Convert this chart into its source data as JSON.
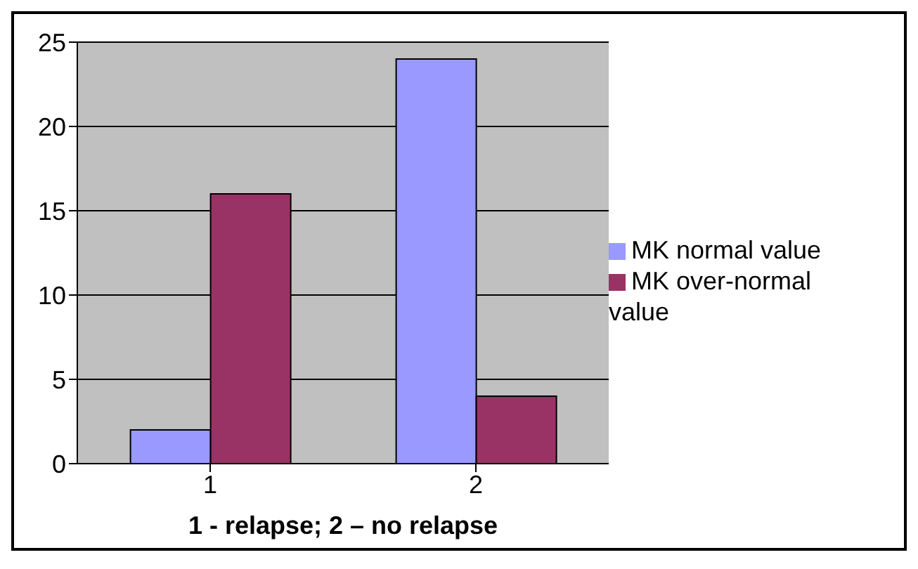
{
  "chart_data": {
    "type": "bar",
    "xlabel": "1 - relapse; 2 – no relapse",
    "categories": [
      "1",
      "2"
    ],
    "series": [
      {
        "name": "MK normal value",
        "color": "#9999ff",
        "values": [
          2,
          24
        ]
      },
      {
        "name": "MK over-normal value",
        "color": "#993366",
        "values": [
          16,
          4
        ]
      }
    ],
    "ylim": [
      0,
      25
    ],
    "yticks": [
      0,
      5,
      10,
      15,
      20,
      25
    ],
    "grid": "y",
    "legend": "right"
  }
}
